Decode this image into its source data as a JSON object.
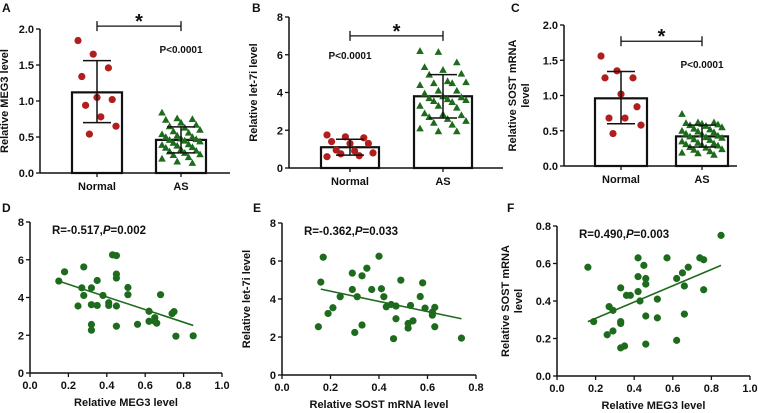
{
  "colors": {
    "normal": "#b01e1e",
    "as": "#1e6b1e",
    "scatter": "#1e6b1e",
    "axis": "#111111"
  },
  "chart_data": [
    {
      "panel": "A",
      "type": "bar",
      "ylabel": [
        "Relative MEG3 level"
      ],
      "categories": [
        "Normal",
        "AS"
      ],
      "ylim": [
        0,
        2
      ],
      "yticks": [
        "0.0",
        "0.5",
        "1.0",
        "1.5",
        "2.0"
      ],
      "ytick_values": [
        0,
        0.5,
        1,
        1.5,
        2
      ],
      "means": [
        1.12,
        0.46
      ],
      "err_low": [
        0.7,
        0.28
      ],
      "err_high": [
        1.56,
        0.64
      ],
      "points": [
        [
          1.84,
          1.65,
          1.46,
          1.34,
          1.05,
          1.02,
          0.94,
          0.78,
          0.65,
          0.54
        ],
        [
          0.84,
          0.76,
          0.75,
          0.74,
          0.7,
          0.67,
          0.65,
          0.63,
          0.6,
          0.58,
          0.56,
          0.54,
          0.52,
          0.5,
          0.5,
          0.48,
          0.47,
          0.46,
          0.45,
          0.44,
          0.42,
          0.4,
          0.39,
          0.38,
          0.36,
          0.35,
          0.33,
          0.31,
          0.3,
          0.28,
          0.26,
          0.25,
          0.22,
          0.2,
          0.16,
          0.14
        ]
      ],
      "marker": [
        "circle",
        "triangle"
      ],
      "significance": {
        "label": "*",
        "level": 2.04,
        "p_text": "P<0.0001",
        "p_at": [
          1,
          1.72
        ]
      }
    },
    {
      "panel": "B",
      "type": "bar",
      "ylabel": [
        "Relative let-7i level"
      ],
      "categories": [
        "Normal",
        "AS"
      ],
      "ylim": [
        0,
        8
      ],
      "yticks": [
        "0",
        "2",
        "4",
        "6",
        "8"
      ],
      "ytick_values": [
        0,
        2,
        4,
        6,
        8
      ],
      "means": [
        1.1,
        3.8
      ],
      "err_low": [
        0.68,
        2.65
      ],
      "err_high": [
        1.52,
        4.95
      ],
      "points": [
        [
          1.75,
          1.65,
          1.6,
          1.4,
          1.3,
          1.3,
          0.95,
          0.9,
          0.8,
          0.75,
          0.65,
          0.6
        ],
        [
          6.2,
          6.15,
          5.6,
          5.35,
          5.2,
          5.0,
          4.95,
          4.6,
          4.55,
          4.5,
          4.5,
          4.4,
          4.1,
          4.1,
          3.95,
          3.8,
          3.75,
          3.7,
          3.65,
          3.6,
          3.55,
          3.5,
          3.3,
          3.3,
          3.2,
          2.9,
          2.85,
          2.8,
          2.7,
          2.6,
          2.5,
          2.4,
          2.3,
          2.1,
          1.95,
          1.95
        ]
      ],
      "marker": [
        "circle",
        "triangle"
      ],
      "significance": {
        "label": "*",
        "level": 7.0,
        "p_text": "P<0.0001",
        "p_at": [
          0,
          6.0
        ]
      }
    },
    {
      "panel": "C",
      "type": "bar",
      "ylabel": [
        "Relative SOST mRNA",
        "level"
      ],
      "categories": [
        "Normal",
        "AS"
      ],
      "ylim": [
        0,
        2
      ],
      "yticks": [
        "0.0",
        "0.5",
        "1.0",
        "1.5",
        "2.0"
      ],
      "ytick_values": [
        0,
        0.5,
        1,
        1.5,
        2
      ],
      "means": [
        0.96,
        0.42
      ],
      "err_low": [
        0.6,
        0.27
      ],
      "err_high": [
        1.34,
        0.58
      ],
      "points": [
        [
          1.56,
          1.35,
          1.25,
          1.25,
          1.02,
          0.84,
          0.68,
          0.68,
          0.58,
          0.46
        ],
        [
          0.74,
          0.62,
          0.62,
          0.61,
          0.6,
          0.59,
          0.58,
          0.57,
          0.55,
          0.53,
          0.52,
          0.5,
          0.49,
          0.48,
          0.46,
          0.45,
          0.43,
          0.42,
          0.41,
          0.4,
          0.38,
          0.37,
          0.35,
          0.33,
          0.32,
          0.31,
          0.3,
          0.29,
          0.27,
          0.26,
          0.24,
          0.23,
          0.21,
          0.19,
          0.18,
          0.16
        ]
      ],
      "marker": [
        "circle",
        "triangle"
      ],
      "significance": {
        "label": "*",
        "level": 1.77,
        "p_text": "P<0.0001",
        "p_at": [
          1,
          1.45
        ]
      }
    },
    {
      "panel": "D",
      "type": "scatter",
      "xlabel": "Relative MEG3 level",
      "ylabel": [
        "Relative let-7i level"
      ],
      "xlim": [
        0,
        1
      ],
      "ylim": [
        0,
        8
      ],
      "xticks": [
        "0.0",
        "0.2",
        "0.4",
        "0.6",
        "0.8",
        "1.0"
      ],
      "xtick_values": [
        0,
        0.2,
        0.4,
        0.6,
        0.8,
        1.0
      ],
      "yticks": [
        "0",
        "2",
        "4",
        "6",
        "8"
      ],
      "ytick_values": [
        0,
        2,
        4,
        6,
        8
      ],
      "annotation": {
        "r": "R=-0.517,",
        "p": "P",
        "pval": "=0.002"
      },
      "fit": [
        [
          0.15,
          4.87
        ],
        [
          0.85,
          2.52
        ]
      ],
      "points": [
        [
          0.15,
          4.87
        ],
        [
          0.18,
          5.36
        ],
        [
          0.27,
          4.51
        ],
        [
          0.28,
          5.62
        ],
        [
          0.28,
          4.11
        ],
        [
          0.25,
          3.55
        ],
        [
          0.32,
          4.51
        ],
        [
          0.32,
          3.62
        ],
        [
          0.35,
          4.9
        ],
        [
          0.35,
          3.58
        ],
        [
          0.38,
          4.11
        ],
        [
          0.32,
          2.57
        ],
        [
          0.32,
          2.27
        ],
        [
          0.41,
          3.58
        ],
        [
          0.41,
          3.72
        ],
        [
          0.43,
          6.26
        ],
        [
          0.45,
          6.22
        ],
        [
          0.45,
          5.24
        ],
        [
          0.45,
          5.03
        ],
        [
          0.45,
          3.55
        ],
        [
          0.45,
          2.48
        ],
        [
          0.51,
          4.53
        ],
        [
          0.51,
          4.15
        ],
        [
          0.56,
          2.58
        ],
        [
          0.62,
          3.27
        ],
        [
          0.62,
          2.74
        ],
        [
          0.65,
          2.74
        ],
        [
          0.65,
          2.93
        ],
        [
          0.66,
          2.64
        ],
        [
          0.68,
          4.15
        ],
        [
          0.74,
          3.15
        ],
        [
          0.75,
          3.25
        ],
        [
          0.76,
          1.95
        ],
        [
          0.85,
          1.97
        ]
      ]
    },
    {
      "panel": "E",
      "type": "scatter",
      "xlabel": "Relative SOST mRNA level",
      "ylabel": [
        "Relative let-7i level"
      ],
      "xlim": [
        0,
        0.8
      ],
      "ylim": [
        0,
        8
      ],
      "xticks": [
        "0.0",
        "0.2",
        "0.4",
        "0.6",
        "0.8"
      ],
      "xtick_values": [
        0,
        0.2,
        0.4,
        0.6,
        0.8
      ],
      "yticks": [
        "0",
        "2",
        "4",
        "6",
        "8"
      ],
      "ytick_values": [
        0,
        2,
        4,
        6,
        8
      ],
      "annotation": {
        "r": "R=-0.362,",
        "p": "P",
        "pval": "=0.033"
      },
      "fit": [
        [
          0.16,
          4.52
        ],
        [
          0.74,
          2.96
        ]
      ],
      "points": [
        [
          0.15,
          2.54
        ],
        [
          0.16,
          4.89
        ],
        [
          0.17,
          6.2
        ],
        [
          0.19,
          3.24
        ],
        [
          0.21,
          3.54
        ],
        [
          0.24,
          4.12
        ],
        [
          0.29,
          4.5
        ],
        [
          0.29,
          5.36
        ],
        [
          0.3,
          2.24
        ],
        [
          0.31,
          4.12
        ],
        [
          0.33,
          5.22
        ],
        [
          0.33,
          2.63
        ],
        [
          0.35,
          5.62
        ],
        [
          0.37,
          4.5
        ],
        [
          0.4,
          6.25
        ],
        [
          0.41,
          4.54
        ],
        [
          0.42,
          4.12
        ],
        [
          0.43,
          3.59
        ],
        [
          0.45,
          3.71
        ],
        [
          0.46,
          1.91
        ],
        [
          0.47,
          3.63
        ],
        [
          0.47,
          2.96
        ],
        [
          0.49,
          4.99
        ],
        [
          0.52,
          2.71
        ],
        [
          0.52,
          2.47
        ],
        [
          0.53,
          3.66
        ],
        [
          0.54,
          2.85
        ],
        [
          0.57,
          4.13
        ],
        [
          0.58,
          4.85
        ],
        [
          0.59,
          3.52
        ],
        [
          0.62,
          3.31
        ],
        [
          0.62,
          3.15
        ],
        [
          0.63,
          3.56
        ],
        [
          0.63,
          2.54
        ],
        [
          0.74,
          1.94
        ]
      ]
    },
    {
      "panel": "F",
      "type": "scatter",
      "xlabel": "Relative MEG3 level",
      "ylabel": [
        "Relative SOST mRNA",
        "level"
      ],
      "xlim": [
        0,
        1
      ],
      "ylim": [
        0,
        0.8
      ],
      "xticks": [
        "0.0",
        "0.2",
        "0.4",
        "0.6",
        "0.8",
        "1.0"
      ],
      "xtick_values": [
        0,
        0.2,
        0.4,
        0.6,
        0.8,
        1.0
      ],
      "yticks": [
        "0.0",
        "0.2",
        "0.4",
        "0.6",
        "0.8"
      ],
      "ytick_values": [
        0,
        0.2,
        0.4,
        0.6,
        0.8
      ],
      "annotation": {
        "r": "R=0.490,",
        "p": "P",
        "pval": "=0.003"
      },
      "fit": [
        [
          0.16,
          0.29
        ],
        [
          0.85,
          0.59
        ]
      ],
      "points": [
        [
          0.16,
          0.58
        ],
        [
          0.19,
          0.29
        ],
        [
          0.26,
          0.22
        ],
        [
          0.27,
          0.37
        ],
        [
          0.29,
          0.35
        ],
        [
          0.29,
          0.24
        ],
        [
          0.33,
          0.47
        ],
        [
          0.33,
          0.29
        ],
        [
          0.33,
          0.28
        ],
        [
          0.33,
          0.15
        ],
        [
          0.35,
          0.16
        ],
        [
          0.36,
          0.43
        ],
        [
          0.38,
          0.43
        ],
        [
          0.42,
          0.63
        ],
        [
          0.42,
          0.53
        ],
        [
          0.42,
          0.45
        ],
        [
          0.43,
          0.4
        ],
        [
          0.45,
          0.59
        ],
        [
          0.46,
          0.52
        ],
        [
          0.46,
          0.49
        ],
        [
          0.46,
          0.32
        ],
        [
          0.46,
          0.17
        ],
        [
          0.52,
          0.41
        ],
        [
          0.52,
          0.31
        ],
        [
          0.57,
          0.63
        ],
        [
          0.62,
          0.52
        ],
        [
          0.62,
          0.19
        ],
        [
          0.65,
          0.55
        ],
        [
          0.66,
          0.48
        ],
        [
          0.66,
          0.33
        ],
        [
          0.68,
          0.58
        ],
        [
          0.74,
          0.63
        ],
        [
          0.76,
          0.62
        ],
        [
          0.76,
          0.46
        ],
        [
          0.85,
          0.75
        ]
      ]
    }
  ]
}
